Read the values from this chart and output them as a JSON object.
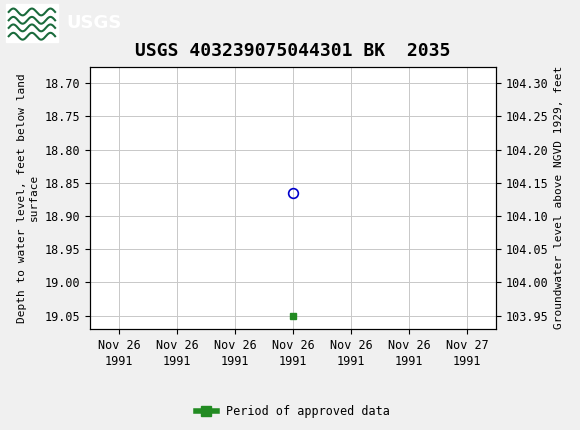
{
  "title": "USGS 403239075044301 BK  2035",
  "header_color": "#1a6b3c",
  "bg_color": "#f0f0f0",
  "plot_bg_color": "#ffffff",
  "grid_color": "#c8c8c8",
  "ylim_left": [
    19.07,
    18.675
  ],
  "ylim_right": [
    103.93,
    104.325
  ],
  "yticks_left": [
    18.7,
    18.75,
    18.8,
    18.85,
    18.9,
    18.95,
    19.0,
    19.05
  ],
  "yticks_right": [
    104.3,
    104.25,
    104.2,
    104.15,
    104.1,
    104.05,
    104.0,
    103.95
  ],
  "xlim": [
    -0.5,
    6.5
  ],
  "xtick_labels": [
    "Nov 26\n1991",
    "Nov 26\n1991",
    "Nov 26\n1991",
    "Nov 26\n1991",
    "Nov 26\n1991",
    "Nov 26\n1991",
    "Nov 27\n1991"
  ],
  "xtick_positions": [
    0,
    1,
    2,
    3,
    4,
    5,
    6
  ],
  "ylabel_left": "Depth to water level, feet below land\nsurface",
  "ylabel_right": "Groundwater level above NGVD 1929, feet",
  "data_point_x": 3,
  "data_point_y": 18.865,
  "data_point_color": "#0000cc",
  "data_square_x": 3,
  "data_square_y": 19.05,
  "data_square_color": "#228b22",
  "legend_label": "Period of approved data",
  "legend_color": "#228b22",
  "title_fontsize": 13,
  "axis_label_fontsize": 8,
  "tick_label_fontsize": 8.5
}
